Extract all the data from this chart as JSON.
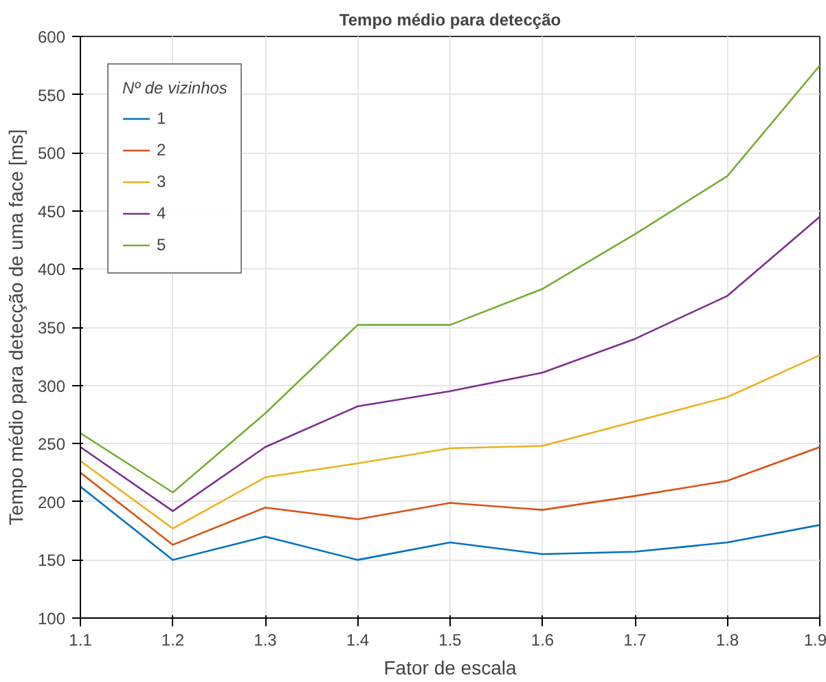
{
  "chart_data": {
    "type": "line",
    "title": "Tempo médio para detecção",
    "xlabel": "Fator de escala",
    "ylabel": "Tempo médio para detecção de uma face [ms]",
    "legend_title": "Nº de vizinhos",
    "x": [
      1.1,
      1.2,
      1.3,
      1.4,
      1.5,
      1.6,
      1.7,
      1.8,
      1.9
    ],
    "xlim": [
      1.1,
      1.9
    ],
    "xticks": [
      1.1,
      1.2,
      1.3,
      1.4,
      1.5,
      1.6,
      1.7,
      1.8,
      1.9
    ],
    "ylim": [
      100,
      600
    ],
    "yticks": [
      100,
      150,
      200,
      250,
      300,
      350,
      400,
      450,
      500,
      550,
      600
    ],
    "grid": true,
    "legend": "top left",
    "series": [
      {
        "name": "1",
        "color": "#0072bd",
        "values": [
          213,
          150,
          170,
          150,
          165,
          155,
          157,
          165,
          180
        ]
      },
      {
        "name": "2",
        "color": "#d95319",
        "values": [
          225,
          163,
          195,
          185,
          199,
          193,
          205,
          218,
          247
        ]
      },
      {
        "name": "3",
        "color": "#edb120",
        "values": [
          235,
          177,
          221,
          233,
          246,
          248,
          269,
          290,
          326
        ]
      },
      {
        "name": "4",
        "color": "#7e2f8e",
        "values": [
          247,
          192,
          247,
          282,
          295,
          311,
          340,
          377,
          445
        ]
      },
      {
        "name": "5",
        "color": "#77ac30",
        "values": [
          259,
          208,
          276,
          352,
          352,
          383,
          430,
          480,
          575
        ]
      }
    ]
  }
}
